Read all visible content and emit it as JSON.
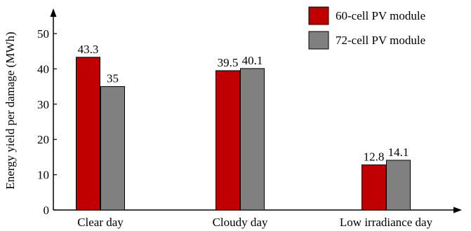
{
  "chart_data": {
    "type": "bar",
    "title": "",
    "xlabel": "",
    "ylabel": "Energy yield per damage (MWh)",
    "categories": [
      "Clear day",
      "Cloudy day",
      "Low irradiance day"
    ],
    "series": [
      {
        "name": "60-cell PV module",
        "values": [
          43.3,
          39.5,
          12.8
        ],
        "labels": [
          "43.3",
          "39.5",
          "12.8"
        ],
        "color": "#c00000"
      },
      {
        "name": "72-cell PV module",
        "values": [
          35,
          40.1,
          14.1
        ],
        "labels": [
          "35",
          "40.1",
          "14.1"
        ],
        "color": "#808080"
      }
    ],
    "ylim": [
      0,
      50
    ],
    "yticks": [
      "0",
      "10",
      "20",
      "30",
      "40",
      "50"
    ],
    "grid": false,
    "legend": "top-right"
  }
}
